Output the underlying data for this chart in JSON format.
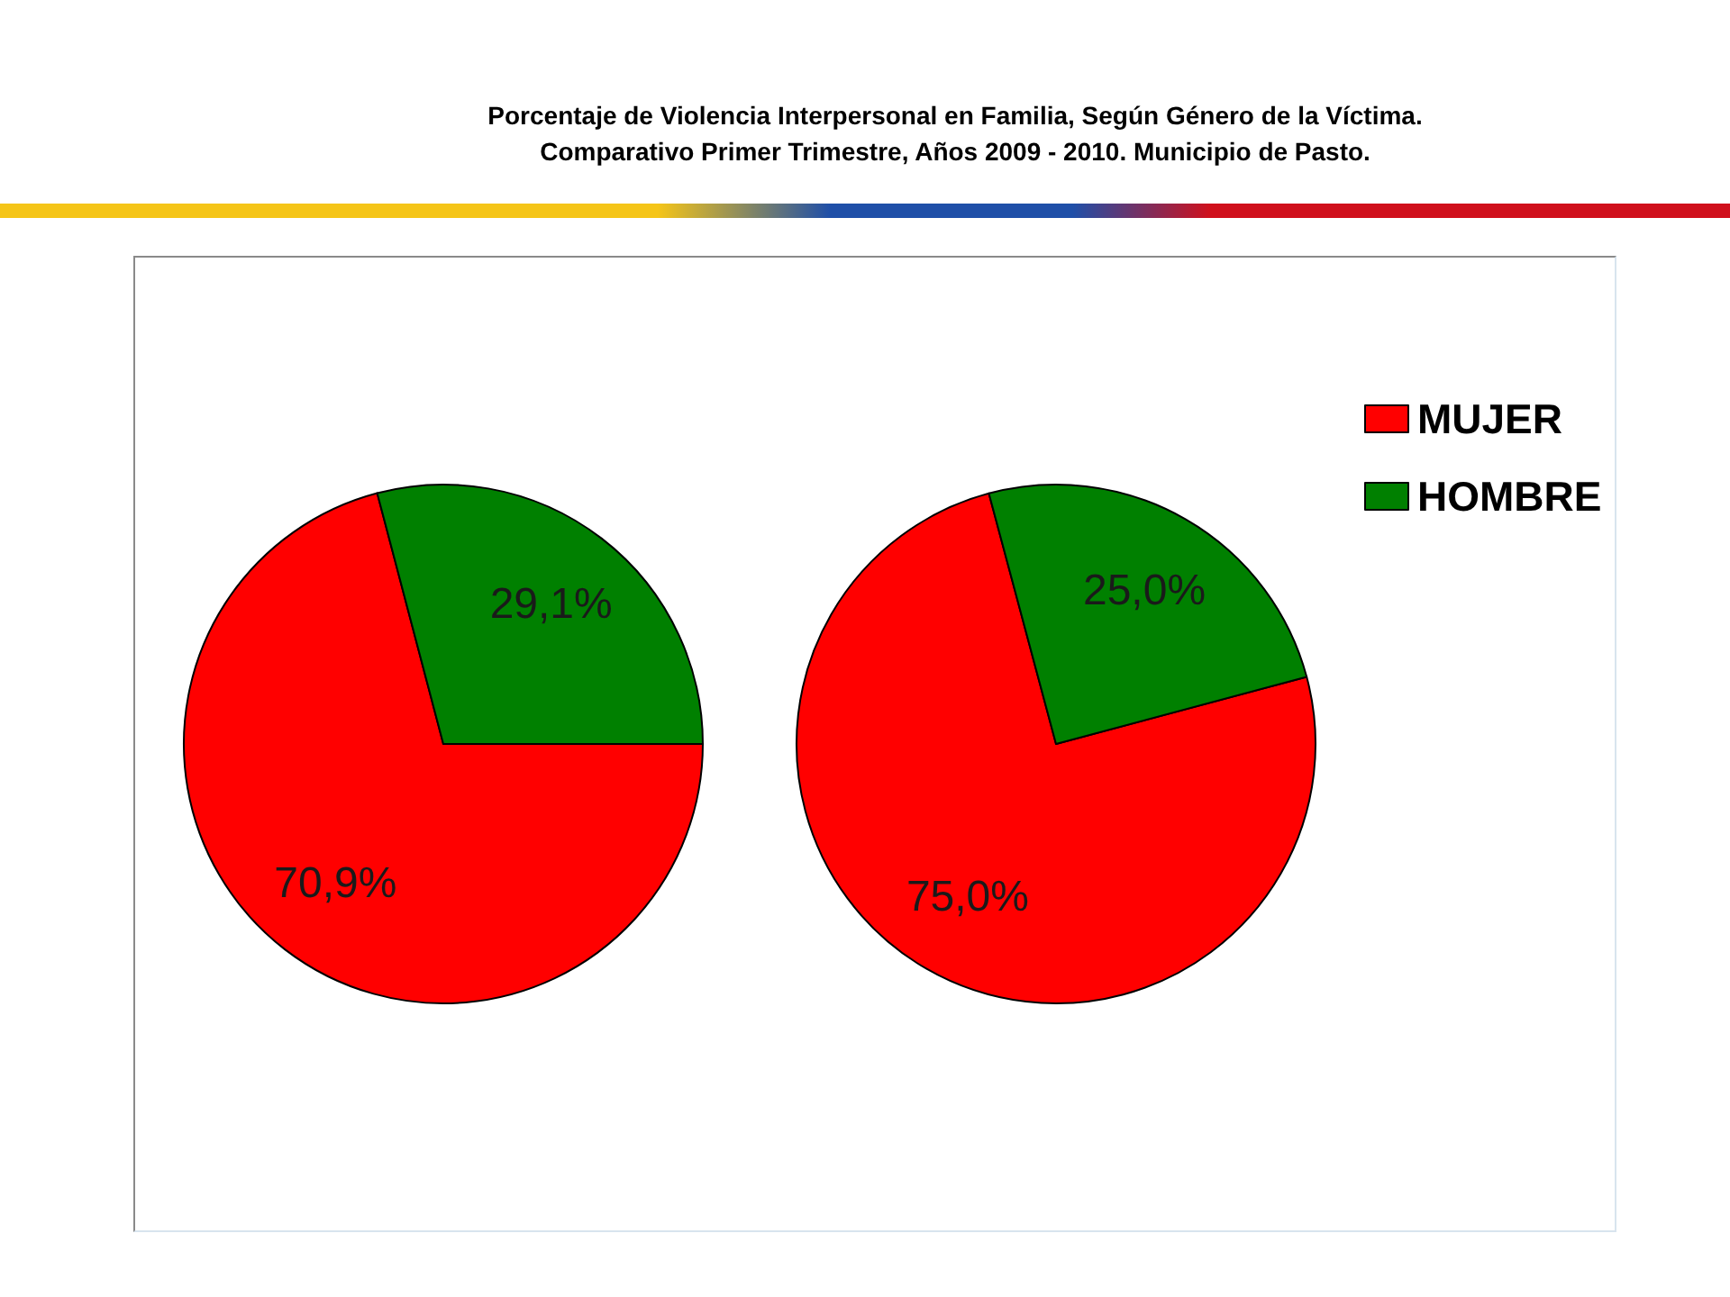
{
  "chart_data": {
    "type": "pie",
    "title": "Porcentaje de Violencia Interpersonal en Familia, Según Género de la Víctima.",
    "subtitle": "Comparativo Primer Trimestre, Años 2009 - 2010. Municipio de Pasto.",
    "categories": [
      "MUJER",
      "HOMBRE"
    ],
    "colors": [
      "#ff0000",
      "#008000"
    ],
    "series": [
      {
        "values": [
          70.9,
          29.1
        ],
        "value_labels": [
          "70,9%",
          "29,1%"
        ]
      },
      {
        "values": [
          75.0,
          25.0
        ],
        "value_labels": [
          "75,0%",
          "25,0%"
        ]
      }
    ],
    "legend": "top right"
  }
}
